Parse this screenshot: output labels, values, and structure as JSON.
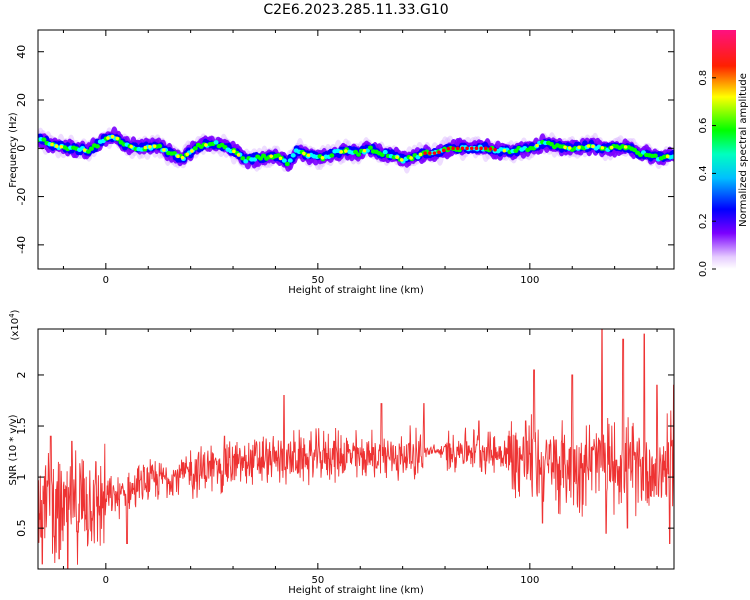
{
  "title": "C2E6.2023.285.11.33.G10",
  "chart_data": [
    {
      "type": "heatmap",
      "xlabel": "Height of straight line (km)",
      "ylabel": "Frequency (Hz)",
      "xlim": [
        -16,
        134
      ],
      "ylim": [
        -50,
        49
      ],
      "xticks": [
        0,
        50,
        100
      ],
      "yticks": [
        -40,
        -20,
        0,
        20,
        40
      ],
      "colorbar": {
        "label": "Normalized spectral amplitude",
        "range": [
          0.0,
          1.0
        ],
        "ticks": [
          0.0,
          0.2,
          0.4,
          0.6,
          0.8
        ],
        "colormap": [
          "#ffffff",
          "#7b00ff",
          "#0000ff",
          "#00ffff",
          "#00ff00",
          "#ffff00",
          "#ff0000",
          "#ff0080"
        ]
      },
      "ridge": [
        [
          -16,
          4
        ],
        [
          -12,
          1
        ],
        [
          -8,
          0
        ],
        [
          -4,
          -1
        ],
        [
          0,
          4
        ],
        [
          2,
          5
        ],
        [
          5,
          1
        ],
        [
          8,
          0
        ],
        [
          12,
          1
        ],
        [
          15,
          -2
        ],
        [
          18,
          -4
        ],
        [
          22,
          1
        ],
        [
          26,
          2
        ],
        [
          30,
          -1
        ],
        [
          33,
          -5
        ],
        [
          36,
          -4
        ],
        [
          40,
          -3
        ],
        [
          43,
          -6
        ],
        [
          45,
          -1
        ],
        [
          48,
          -3
        ],
        [
          51,
          -4
        ],
        [
          54,
          -2
        ],
        [
          57,
          -1
        ],
        [
          60,
          -2
        ],
        [
          62,
          0
        ],
        [
          65,
          -2
        ],
        [
          68,
          -3
        ],
        [
          70,
          -5
        ],
        [
          72,
          -4
        ],
        [
          75,
          -2
        ],
        [
          78,
          -2
        ],
        [
          81,
          0
        ],
        [
          84,
          0
        ],
        [
          87,
          0
        ],
        [
          90,
          0
        ],
        [
          93,
          -1
        ],
        [
          96,
          -1
        ],
        [
          100,
          0
        ],
        [
          103,
          2
        ],
        [
          106,
          1
        ],
        [
          110,
          0
        ],
        [
          114,
          1
        ],
        [
          118,
          0
        ],
        [
          122,
          1
        ],
        [
          126,
          -2
        ],
        [
          130,
          -4
        ],
        [
          134,
          -3
        ]
      ]
    },
    {
      "type": "line",
      "xlabel": "Height of straight line (km)",
      "ylabel": "SNR (10 * v/v)",
      "multiplier_label": "(x10^4)",
      "multiplier_base": "(x10",
      "multiplier_exp": "4",
      "xlim": [
        -16,
        134
      ],
      "ylim": [
        0.1,
        2.45
      ],
      "xticks": [
        0,
        50,
        100
      ],
      "yticks": [
        0.5,
        1.0,
        1.5,
        2.0
      ],
      "series": [
        {
          "color": "#ee3333",
          "trend": [
            [
              -16,
              0.85
            ],
            [
              -10,
              0.65
            ],
            [
              -5,
              0.75
            ],
            [
              0,
              0.78
            ],
            [
              5,
              0.85
            ],
            [
              10,
              0.95
            ],
            [
              15,
              1.0
            ],
            [
              20,
              1.05
            ],
            [
              25,
              1.08
            ],
            [
              30,
              1.12
            ],
            [
              35,
              1.15
            ],
            [
              40,
              1.17
            ],
            [
              45,
              1.18
            ],
            [
              50,
              1.2
            ],
            [
              55,
              1.22
            ],
            [
              60,
              1.2
            ],
            [
              65,
              1.2
            ],
            [
              70,
              1.2
            ],
            [
              74,
              1.25
            ],
            [
              80,
              1.25
            ],
            [
              85,
              1.28
            ],
            [
              90,
              1.25
            ],
            [
              95,
              1.22
            ],
            [
              100,
              1.15
            ],
            [
              105,
              1.1
            ],
            [
              110,
              1.1
            ],
            [
              115,
              1.15
            ],
            [
              120,
              1.15
            ],
            [
              125,
              1.1
            ],
            [
              130,
              1.05
            ],
            [
              134,
              1.2
            ]
          ],
          "peaks": [
            [
              -15,
              0.15
            ],
            [
              -13,
              1.4
            ],
            [
              -11,
              0.2
            ],
            [
              -9,
              0.1
            ],
            [
              -8,
              1.35
            ],
            [
              5,
              0.35
            ],
            [
              28,
              1.4
            ],
            [
              42,
              1.8
            ],
            [
              65,
              1.72
            ],
            [
              75,
              1.72
            ],
            [
              88,
              1.55
            ],
            [
              99,
              1.55
            ],
            [
              101,
              2.05
            ],
            [
              103,
              0.55
            ],
            [
              110,
              2.0
            ],
            [
              117,
              2.45
            ],
            [
              118,
              0.45
            ],
            [
              122,
              2.35
            ],
            [
              123,
              0.5
            ],
            [
              127,
              2.4
            ],
            [
              130,
              1.9
            ],
            [
              133,
              0.35
            ],
            [
              134,
              1.9
            ]
          ]
        }
      ]
    }
  ]
}
